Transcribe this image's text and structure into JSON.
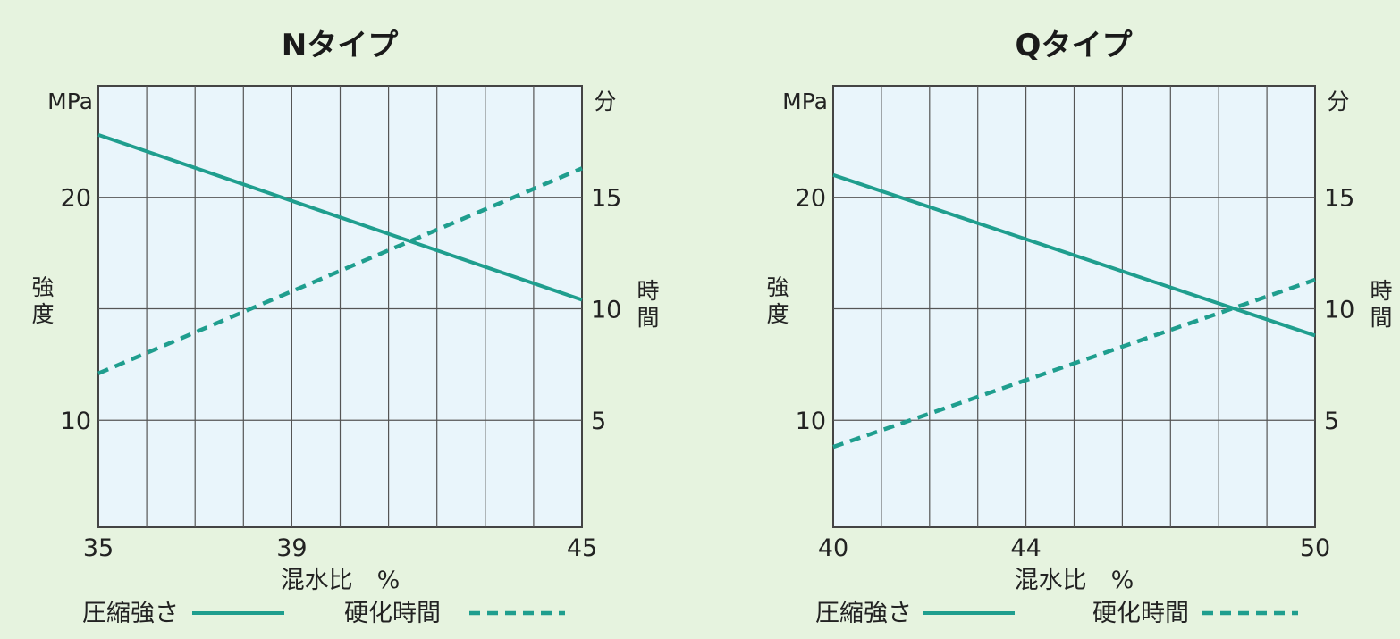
{
  "chart_data": [
    {
      "type": "line",
      "title": "Nタイプ",
      "xlabel": "混水比　%",
      "xlim": [
        35,
        45
      ],
      "x_ticks": [
        "35",
        "39",
        "45"
      ],
      "y_left": {
        "label": "強度",
        "unit": "MPa",
        "ylim": [
          5.2,
          25
        ],
        "ticks": [
          "10",
          "20"
        ]
      },
      "y_right": {
        "label": "時間",
        "unit": "分",
        "ylim": [
          0.2,
          20
        ],
        "ticks": [
          "5",
          "10",
          "15"
        ]
      },
      "series": [
        {
          "name": "圧縮強さ",
          "axis": "left",
          "style": "solid",
          "x": [
            35,
            45
          ],
          "y": [
            22.8,
            15.4
          ]
        },
        {
          "name": "硬化時間",
          "axis": "right",
          "style": "dashed",
          "x": [
            35,
            45
          ],
          "y": [
            7.1,
            16.3
          ]
        }
      ],
      "grid": true,
      "legend_position": "bottom"
    },
    {
      "type": "line",
      "title": "Qタイプ",
      "xlabel": "混水比　%",
      "xlim": [
        40,
        50
      ],
      "x_ticks": [
        "40",
        "44",
        "50"
      ],
      "y_left": {
        "label": "強度",
        "unit": "MPa",
        "ylim": [
          5.2,
          25
        ],
        "ticks": [
          "10",
          "20"
        ]
      },
      "y_right": {
        "label": "時間",
        "unit": "分",
        "ylim": [
          0.2,
          20
        ],
        "ticks": [
          "5",
          "10",
          "15"
        ]
      },
      "series": [
        {
          "name": "圧縮強さ",
          "axis": "left",
          "style": "solid",
          "x": [
            40,
            50
          ],
          "y": [
            21.0,
            13.8
          ]
        },
        {
          "name": "硬化時間",
          "axis": "right",
          "style": "dashed",
          "x": [
            40,
            50
          ],
          "y": [
            3.8,
            11.3
          ]
        }
      ],
      "grid": true,
      "legend_position": "bottom"
    }
  ],
  "colors": {
    "line": "#1f9e8e",
    "background": "#e6f3df",
    "plot_background": "#e9f5fb"
  }
}
